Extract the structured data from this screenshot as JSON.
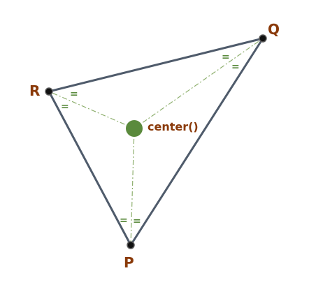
{
  "diagram": {
    "vertices": {
      "P": {
        "label": "P"
      },
      "Q": {
        "label": "Q"
      },
      "R": {
        "label": "R"
      }
    },
    "center": {
      "label": "center()"
    },
    "equal_mark": "=",
    "colors": {
      "triangle_edge": "#4f5b6b",
      "vertex_fill": "#111111",
      "vertex_stroke": "#5a5a5a",
      "center_fill": "#5a8a3c",
      "guide_line": "#8fb06f",
      "equal_mark": "#5a8a3c",
      "label_text": "#8a3a0a",
      "background": "#ffffff"
    }
  }
}
